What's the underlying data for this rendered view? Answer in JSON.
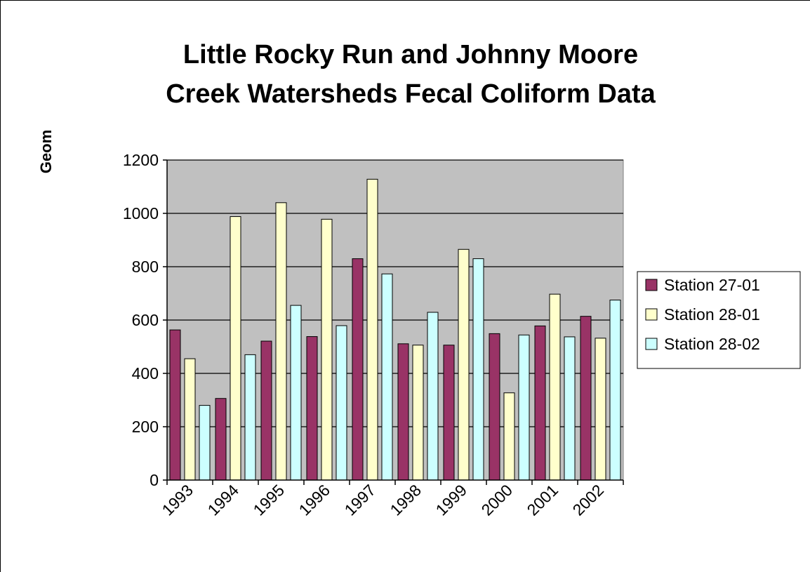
{
  "chart_data": {
    "type": "bar",
    "title_lines": [
      "Little Rocky Run and Johnny Moore",
      "Creek Watersheds Fecal Coliform Data"
    ],
    "ylabel": "Geom",
    "xlabel": "",
    "ylim": [
      0,
      1200
    ],
    "yticks": [
      "0",
      "200",
      "400",
      "600",
      "800",
      "1000",
      "1200"
    ],
    "categories": [
      "1993",
      "1994",
      "1995",
      "1996",
      "1997",
      "1998",
      "1999",
      "2000",
      "2001",
      "2002"
    ],
    "series": [
      {
        "name": "Station 27-01",
        "color": "#993366",
        "values": [
          563,
          306,
          521,
          538,
          830,
          511,
          506,
          549,
          578,
          614
        ]
      },
      {
        "name": "Station 28-01",
        "color": "#ffffcc",
        "values": [
          455,
          988,
          1040,
          978,
          1128,
          506,
          865,
          327,
          697,
          532
        ]
      },
      {
        "name": "Station 28-02",
        "color": "#ccffff",
        "values": [
          280,
          470,
          655,
          579,
          773,
          629,
          830,
          544,
          537,
          675
        ]
      }
    ],
    "grid": true,
    "plot_background": "#c0c0c0",
    "legend_position": "right"
  }
}
